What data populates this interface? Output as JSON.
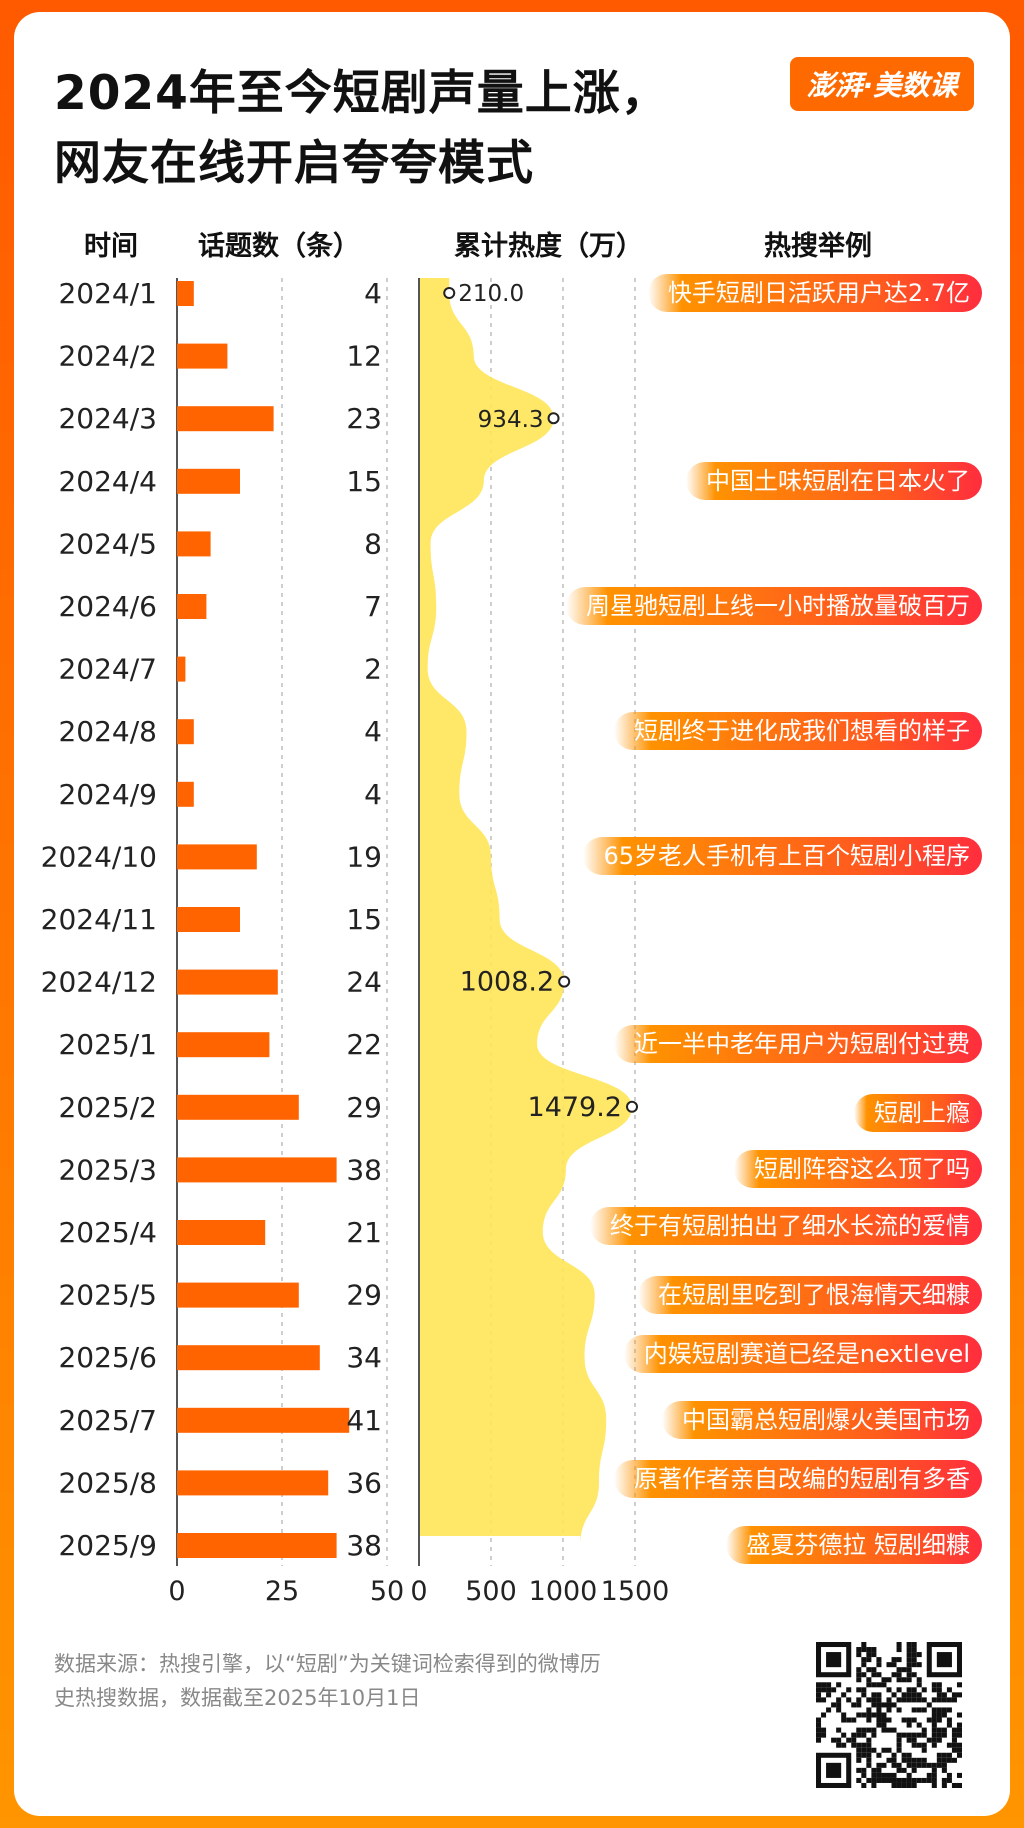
{
  "title_line1": "2024年至今短剧声量上涨，",
  "title_line2": "网友在线开启夸夸模式",
  "logo_text": "澎湃·美数课",
  "headers": {
    "time": "时间",
    "topics": "话题数（条）",
    "heat": "累计热度（万）",
    "examples": "热搜举例"
  },
  "chart_data": {
    "type": "bar",
    "categories": [
      "2024/1",
      "2024/2",
      "2024/3",
      "2024/4",
      "2024/5",
      "2024/6",
      "2024/7",
      "2024/8",
      "2024/9",
      "2024/10",
      "2024/11",
      "2024/12",
      "2025/1",
      "2025/2",
      "2025/3",
      "2025/4",
      "2025/5",
      "2025/6",
      "2025/7",
      "2025/8",
      "2025/9"
    ],
    "series": [
      {
        "values": [
          4,
          12,
          23,
          15,
          8,
          7,
          2,
          4,
          4,
          19,
          15,
          24,
          22,
          29,
          38,
          21,
          29,
          34,
          41,
          36,
          38
        ],
        "xlim": [
          0,
          50
        ],
        "ticks": [
          0,
          25,
          50
        ]
      },
      {
        "values": [
          210,
          380,
          934.3,
          450,
          80,
          120,
          60,
          330,
          280,
          500,
          560,
          1008.2,
          820,
          1479.2,
          1020,
          860,
          1220,
          1150,
          1300,
          1250,
          1120
        ],
        "labels": {
          "0": "210.0",
          "2": "934.3",
          "11": "1008.2",
          "13": "1479.2"
        },
        "xlim": [
          0,
          1500
        ],
        "ticks": [
          0,
          500,
          1000,
          1500
        ]
      }
    ],
    "tick_labels_topics": [
      "0",
      "25",
      "50"
    ],
    "tick_labels_heat": [
      "0",
      "500",
      "1000",
      "1500"
    ],
    "colors": {
      "bar": "#ff6400",
      "area": "#ffe457",
      "pill": "#ff5a1e"
    }
  },
  "examples": [
    {
      "month_index": 0,
      "text": "快手短剧日活跃用户达2.7亿"
    },
    {
      "month_index": 3,
      "text": "中国土味短剧在日本火了"
    },
    {
      "month_index": 5,
      "text": "周星驰短剧上线一小时播放量破百万"
    },
    {
      "month_index": 7,
      "text": "短剧终于进化成我们想看的样子"
    },
    {
      "month_index": 9,
      "text": "65岁老人手机有上百个短剧小程序"
    },
    {
      "month_index": 12,
      "text": "近一半中老年用户为短剧付过费"
    },
    {
      "month_index": 13.1,
      "text": "短剧上瘾"
    },
    {
      "month_index": 14,
      "text": "短剧阵容这么顶了吗"
    },
    {
      "month_index": 14.9,
      "text": "终于有短剧拍出了细水长流的爱情"
    },
    {
      "month_index": 16,
      "text": "在短剧里吃到了恨海情天细糠"
    },
    {
      "month_index": 16.95,
      "text": "内娱短剧赛道已经是nextlevel"
    },
    {
      "month_index": 18,
      "text": "中国霸总短剧爆火美国市场"
    },
    {
      "month_index": 18.95,
      "text": "原著作者亲自改编的短剧有多香"
    },
    {
      "month_index": 20,
      "text": "盛夏芬德拉 短剧细糠"
    }
  ],
  "source_line1": "数据来源：热搜引擎，以“短剧”为关键词检索得到的微博历",
  "source_line2": "史热搜数据，数据截至2025年10月1日"
}
